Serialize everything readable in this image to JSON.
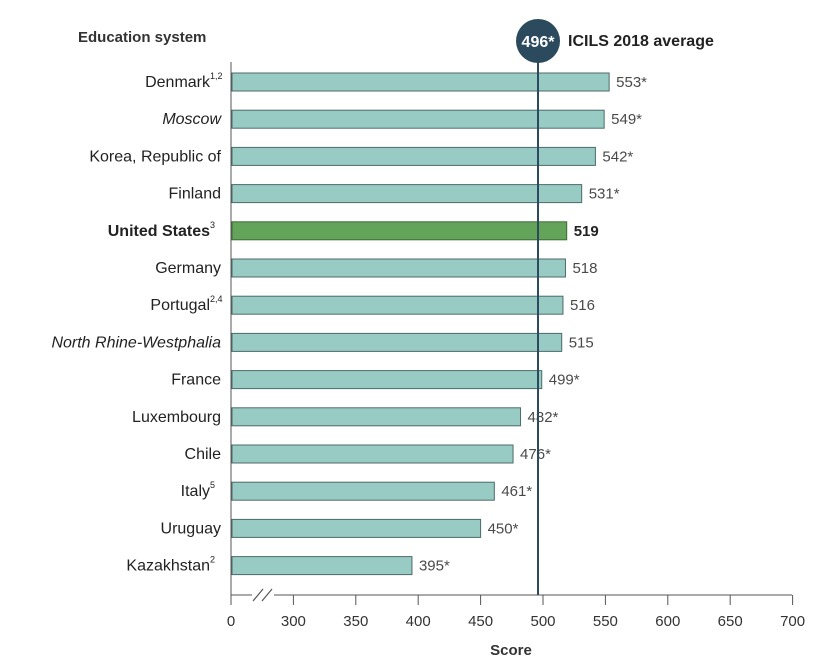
{
  "chart_data": {
    "type": "bar",
    "orientation": "horizontal",
    "header": "Education system",
    "xlabel": "Score",
    "xlim": [
      250,
      700
    ],
    "xticks": [
      "0",
      "300",
      "350",
      "400",
      "450",
      "500",
      "550",
      "600",
      "650",
      "700"
    ],
    "axis_break": true,
    "reference": {
      "value": 496,
      "badge": "496*",
      "label": "ICILS 2018 average"
    },
    "categories": [
      {
        "name": "Denmark",
        "sup": "1,2",
        "italic": false,
        "highlight": false
      },
      {
        "name": "Moscow",
        "sup": "",
        "italic": true,
        "highlight": false
      },
      {
        "name": "Korea, Republic of",
        "sup": "",
        "italic": false,
        "highlight": false
      },
      {
        "name": "Finland",
        "sup": "",
        "italic": false,
        "highlight": false
      },
      {
        "name": "United States",
        "sup": "3",
        "italic": false,
        "highlight": true
      },
      {
        "name": "Germany",
        "sup": "",
        "italic": false,
        "highlight": false
      },
      {
        "name": "Portugal",
        "sup": "2,4",
        "italic": false,
        "highlight": false
      },
      {
        "name": "North Rhine-Westphalia",
        "sup": "",
        "italic": true,
        "highlight": false
      },
      {
        "name": "France",
        "sup": "",
        "italic": false,
        "highlight": false
      },
      {
        "name": "Luxembourg",
        "sup": "",
        "italic": false,
        "highlight": false
      },
      {
        "name": "Chile",
        "sup": "",
        "italic": false,
        "highlight": false
      },
      {
        "name": "Italy",
        "sup": "5",
        "italic": false,
        "highlight": false
      },
      {
        "name": "Uruguay",
        "sup": "",
        "italic": false,
        "highlight": false
      },
      {
        "name": "Kazakhstan",
        "sup": "2",
        "italic": false,
        "highlight": false
      }
    ],
    "values": [
      553,
      549,
      542,
      531,
      519,
      518,
      516,
      515,
      499,
      482,
      476,
      461,
      450,
      395
    ],
    "value_labels": [
      "553*",
      "549*",
      "542*",
      "531*",
      "519",
      "518",
      "516",
      "515",
      "499*",
      "482*",
      "476*",
      "461*",
      "450*",
      "395*"
    ],
    "grid": false,
    "legend": "none",
    "colors": {
      "bar": "#97cbc4",
      "bar_stroke": "#4d6b68",
      "highlight_bar": "#64a35a",
      "highlight_stroke": "#3d6b35",
      "reference": "#2c4a5e",
      "axis": "#555555"
    }
  }
}
